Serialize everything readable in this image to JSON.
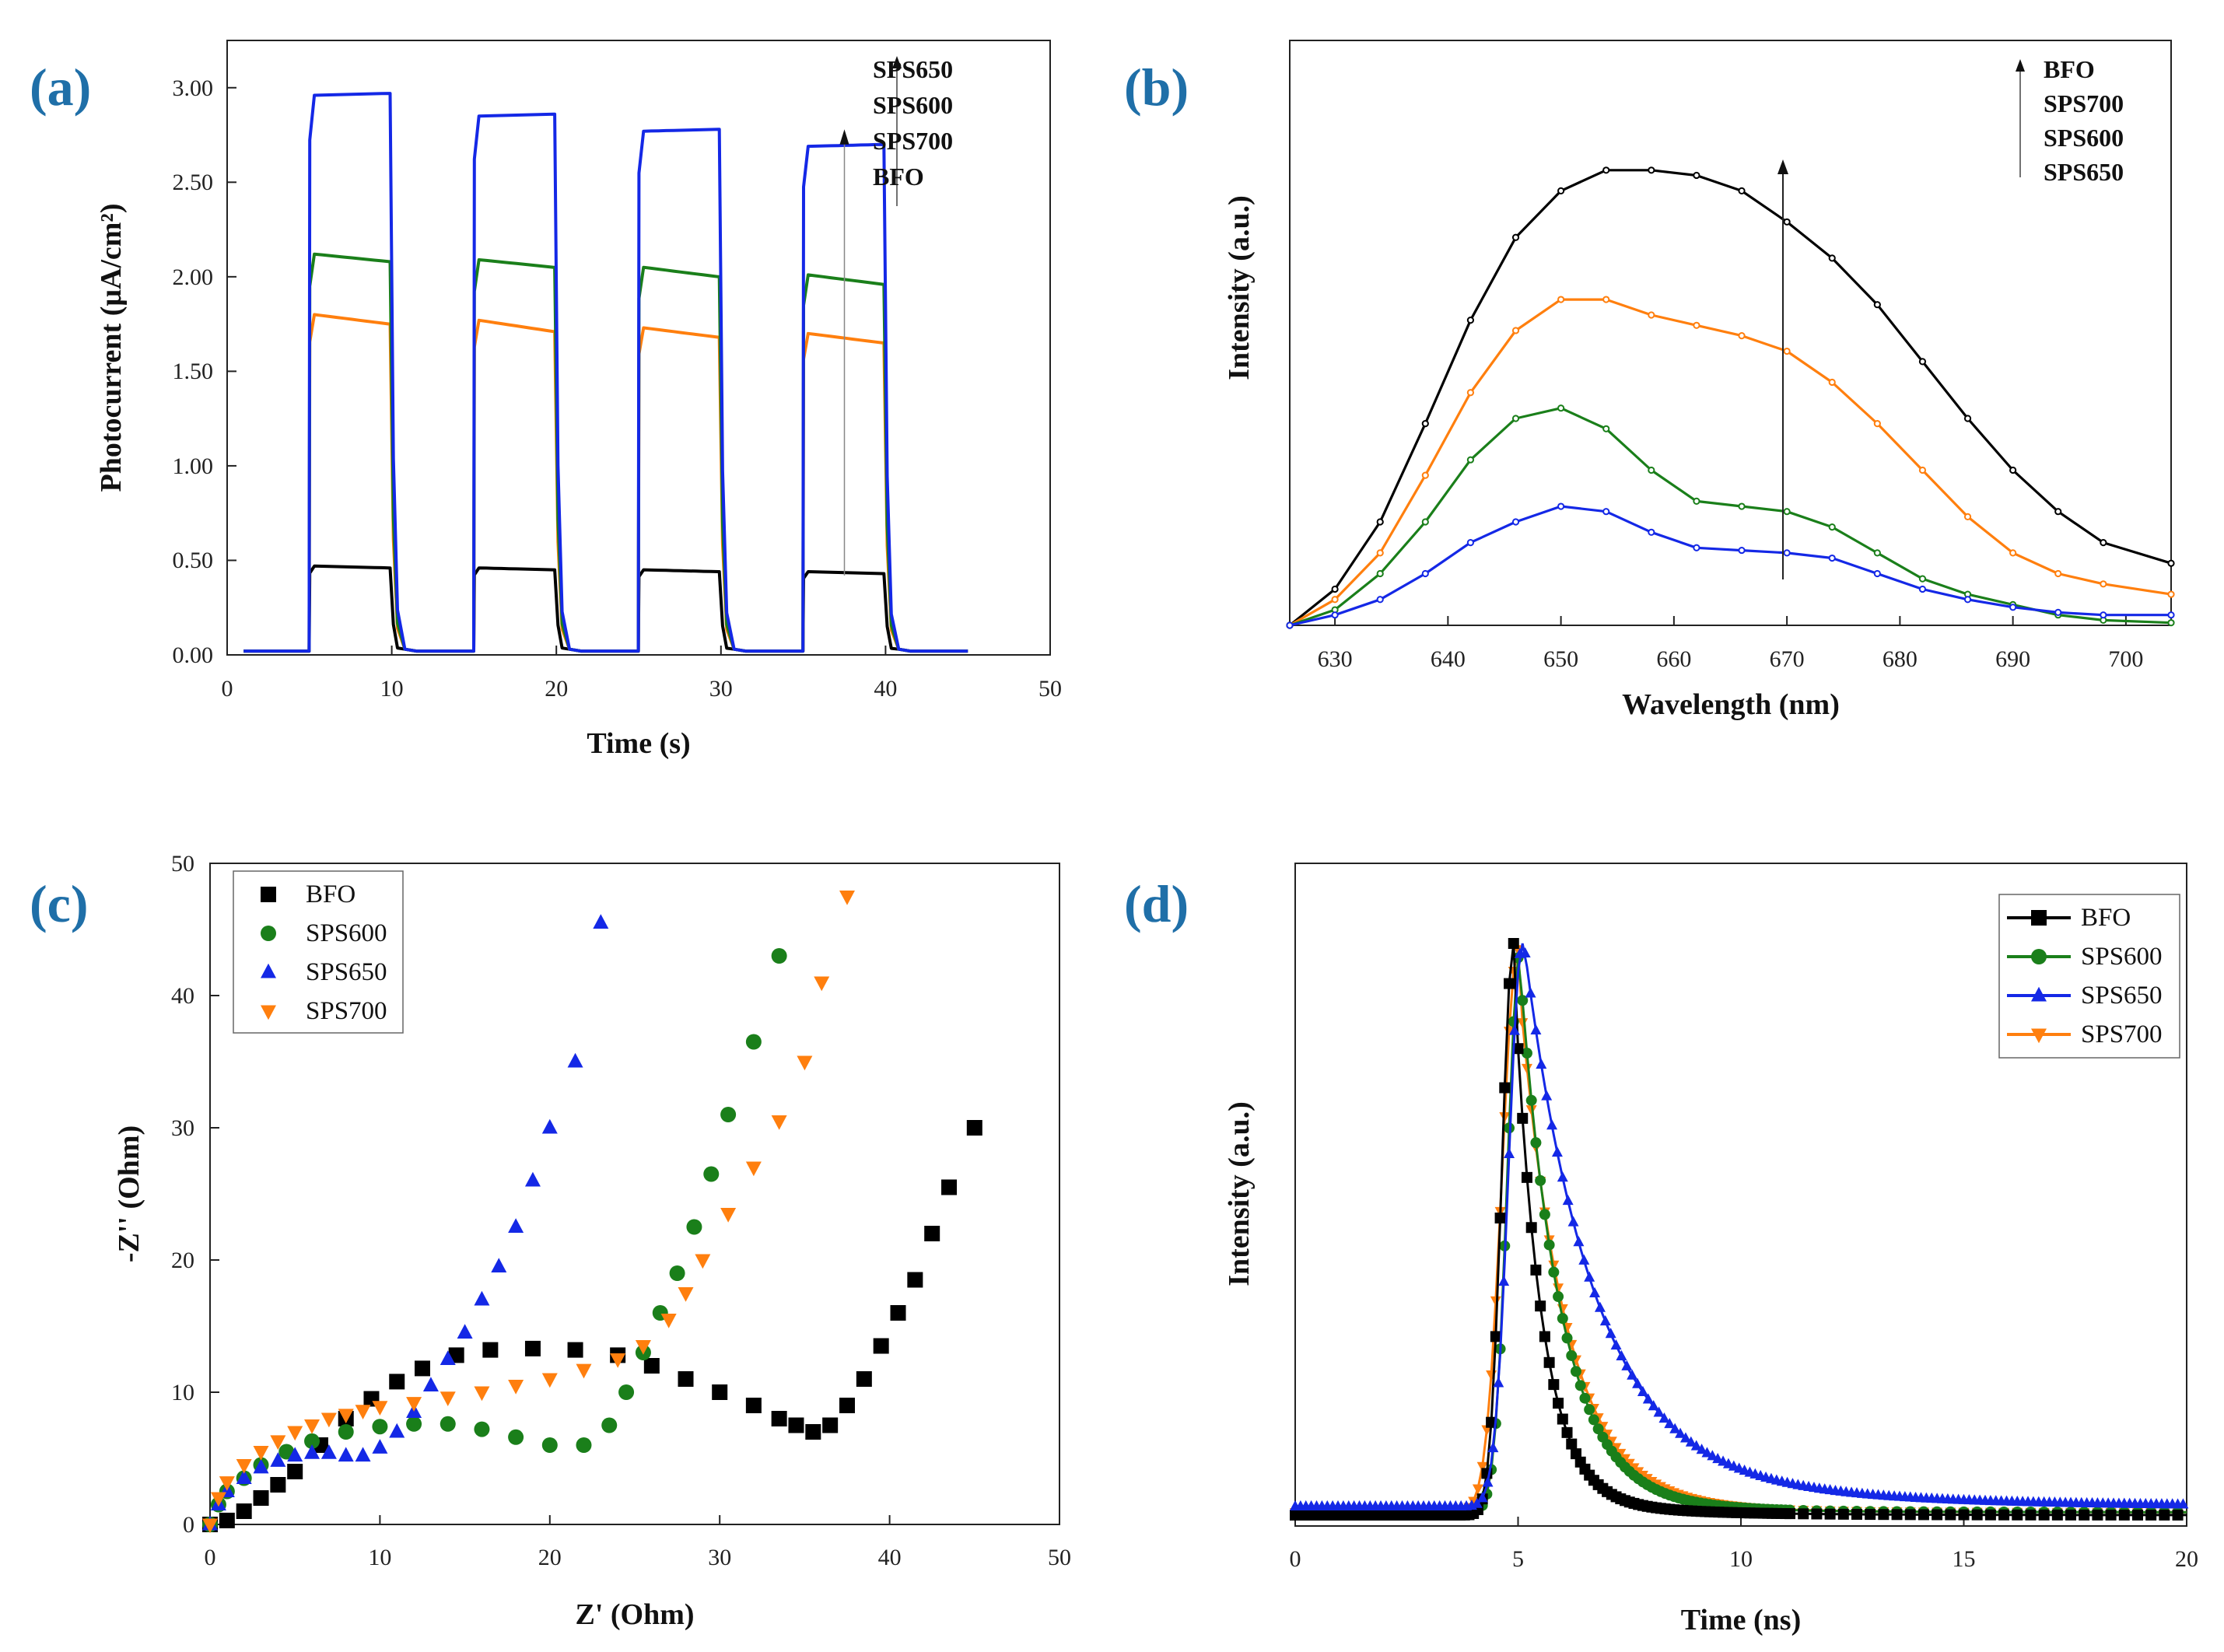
{
  "colors": {
    "label": "#1f6fa8",
    "BFO": "#000000",
    "SPS600": "#1a7f1a",
    "SPS650": "#1428e6",
    "SPS700": "#ff7f0e",
    "axis": "#222222"
  },
  "chart_data": [
    {
      "panel": "(a)",
      "type": "line",
      "xlabel": "Time (s)",
      "ylabel": "Photocurrent (μA/cm²)",
      "xlim": [
        0,
        50
      ],
      "ylim": [
        0,
        3.25
      ],
      "xticks": [
        "0",
        "10",
        "20",
        "30",
        "40",
        "50"
      ],
      "yticks": [
        "0.00",
        "0.50",
        "1.00",
        "1.50",
        "2.00",
        "2.50",
        "3.00"
      ],
      "light_on_intervals": [
        [
          5,
          10
        ],
        [
          15,
          20
        ],
        [
          25,
          30
        ],
        [
          35,
          40
        ]
      ],
      "series": [
        {
          "name": "BFO",
          "on_start": [
            0.47,
            0.46,
            0.45,
            0.44
          ],
          "on_end": [
            0.46,
            0.45,
            0.44,
            0.43
          ],
          "off": 0.02
        },
        {
          "name": "SPS700",
          "on_start": [
            1.8,
            1.77,
            1.73,
            1.7
          ],
          "on_end": [
            1.75,
            1.71,
            1.68,
            1.65
          ],
          "off": 0.02
        },
        {
          "name": "SPS600",
          "on_start": [
            2.12,
            2.09,
            2.05,
            2.01
          ],
          "on_end": [
            2.08,
            2.05,
            2.0,
            1.96
          ],
          "off": 0.02
        },
        {
          "name": "SPS650",
          "on_start": [
            2.96,
            2.85,
            2.77,
            2.69
          ],
          "on_end": [
            2.97,
            2.86,
            2.78,
            2.7
          ],
          "off": 0.02
        }
      ],
      "legend": [
        "SPS650",
        "SPS600",
        "SPS700",
        "BFO"
      ]
    },
    {
      "panel": "(b)",
      "type": "line",
      "xlabel": "Wavelength (nm)",
      "ylabel": "Intensity (a.u.)",
      "xlim": [
        626,
        704
      ],
      "ylim": [
        0,
        1.0
      ],
      "xticks": [
        "630",
        "640",
        "650",
        "660",
        "670",
        "680",
        "690",
        "700"
      ],
      "x": [
        626,
        630,
        634,
        638,
        642,
        646,
        650,
        654,
        658,
        662,
        666,
        670,
        674,
        678,
        682,
        686,
        690,
        694,
        698,
        704
      ],
      "series": [
        {
          "name": "BFO",
          "values": [
            0.0,
            0.07,
            0.2,
            0.39,
            0.59,
            0.75,
            0.84,
            0.88,
            0.88,
            0.87,
            0.84,
            0.78,
            0.71,
            0.62,
            0.51,
            0.4,
            0.3,
            0.22,
            0.16,
            0.12
          ]
        },
        {
          "name": "SPS700",
          "values": [
            0.0,
            0.05,
            0.14,
            0.29,
            0.45,
            0.57,
            0.63,
            0.63,
            0.6,
            0.58,
            0.56,
            0.53,
            0.47,
            0.39,
            0.3,
            0.21,
            0.14,
            0.1,
            0.08,
            0.06
          ]
        },
        {
          "name": "SPS600",
          "values": [
            0.0,
            0.03,
            0.1,
            0.2,
            0.32,
            0.4,
            0.42,
            0.38,
            0.3,
            0.24,
            0.23,
            0.22,
            0.19,
            0.14,
            0.09,
            0.06,
            0.04,
            0.02,
            0.01,
            0.005
          ]
        },
        {
          "name": "SPS650",
          "values": [
            0.0,
            0.02,
            0.05,
            0.1,
            0.16,
            0.2,
            0.23,
            0.22,
            0.18,
            0.15,
            0.145,
            0.14,
            0.13,
            0.1,
            0.07,
            0.05,
            0.035,
            0.025,
            0.02,
            0.02
          ]
        }
      ],
      "legend": [
        "BFO",
        "SPS700",
        "SPS600",
        "SPS650"
      ]
    },
    {
      "panel": "(c)",
      "type": "scatter",
      "xlabel": "Z' (Ohm)",
      "ylabel": "-Z'' (Ohm)",
      "xlim": [
        0,
        50
      ],
      "ylim": [
        0,
        50
      ],
      "xticks": [
        "0",
        "10",
        "20",
        "30",
        "40",
        "50"
      ],
      "yticks": [
        "0",
        "10",
        "20",
        "30",
        "40",
        "50"
      ],
      "series": [
        {
          "name": "BFO",
          "marker": "square",
          "x": [
            0,
            1,
            2,
            3,
            4,
            5,
            6.5,
            8,
            9.5,
            11,
            12.5,
            14.5,
            16.5,
            19,
            21.5,
            24,
            26,
            28,
            30,
            32,
            33.5,
            34.5,
            35.5,
            36.5,
            37.5,
            38.5,
            39.5,
            40.5,
            41.5,
            42.5,
            43.5,
            45
          ],
          "y": [
            0,
            0.3,
            1,
            2,
            3,
            4,
            6,
            8,
            9.5,
            10.8,
            11.8,
            12.8,
            13.2,
            13.3,
            13.2,
            12.8,
            12,
            11,
            10,
            9,
            8,
            7.5,
            7,
            7.5,
            9,
            11,
            13.5,
            16,
            18.5,
            22,
            25.5,
            30
          ]
        },
        {
          "name": "SPS600",
          "marker": "circle",
          "x": [
            0,
            0.5,
            1,
            2,
            3,
            4.5,
            6,
            8,
            10,
            12,
            14,
            16,
            18,
            20,
            22,
            23.5,
            24.5,
            25.5,
            26.5,
            27.5,
            28.5,
            29.5,
            30.5,
            32,
            33.5
          ],
          "y": [
            0,
            1.5,
            2.5,
            3.5,
            4.5,
            5.5,
            6.3,
            7,
            7.4,
            7.6,
            7.6,
            7.2,
            6.6,
            6,
            6,
            7.5,
            10,
            13,
            16,
            19,
            22.5,
            26.5,
            31,
            36.5,
            43
          ]
        },
        {
          "name": "SPS650",
          "marker": "triangle-up",
          "x": [
            0,
            0.5,
            1,
            2,
            3,
            4,
            5,
            6,
            7,
            8,
            9,
            10,
            11,
            12,
            13,
            14,
            15,
            16,
            17,
            18,
            19,
            20,
            21.5,
            23
          ],
          "y": [
            0,
            1.5,
            2.5,
            3.5,
            4.3,
            4.8,
            5.2,
            5.4,
            5.4,
            5.2,
            5.2,
            5.8,
            7,
            8.5,
            10.5,
            12.5,
            14.5,
            17,
            19.5,
            22.5,
            26,
            30,
            35,
            45.5
          ]
        },
        {
          "name": "SPS700",
          "marker": "triangle-down",
          "x": [
            0,
            0.5,
            1,
            2,
            3,
            4,
            5,
            6,
            7,
            8,
            9,
            10,
            12,
            14,
            16,
            18,
            20,
            22,
            24,
            25.5,
            27,
            28,
            29,
            30.5,
            32,
            33.5,
            35,
            36,
            37.5
          ],
          "y": [
            0,
            2,
            3.2,
            4.5,
            5.5,
            6.3,
            7,
            7.5,
            8,
            8.3,
            8.6,
            8.9,
            9.2,
            9.6,
            10,
            10.5,
            11,
            11.7,
            12.5,
            13.5,
            15.5,
            17.5,
            20,
            23.5,
            27,
            30.5,
            35,
            41,
            47.5
          ]
        }
      ],
      "legend": [
        "BFO",
        "SPS600",
        "SPS650",
        "SPS700"
      ]
    },
    {
      "panel": "(d)",
      "type": "line",
      "xlabel": "Time (ns)",
      "ylabel": "Intensity (a.u.)",
      "xlim": [
        0,
        20
      ],
      "ylim": [
        0,
        1.0
      ],
      "xticks": [
        "0",
        "5",
        "10",
        "15",
        "20"
      ],
      "series": [
        {
          "name": "BFO",
          "marker": "square",
          "peak_time": 4.9,
          "peak": 0.98,
          "rise": 0.55,
          "decay": 0.6,
          "baseline": 0.0
        },
        {
          "name": "SPS600",
          "marker": "circle",
          "peak_time": 5.05,
          "peak": 0.97,
          "rise": 0.6,
          "decay": 0.9,
          "baseline": 0.005
        },
        {
          "name": "SPS650",
          "marker": "triangle-up",
          "peak_time": 5.1,
          "peak": 0.98,
          "rise": 0.65,
          "decay": 1.5,
          "baseline": 0.015
        },
        {
          "name": "SPS700",
          "marker": "triangle-down",
          "peak_time": 5.0,
          "peak": 0.97,
          "rise": 0.75,
          "decay": 1.0,
          "baseline": 0.005
        }
      ],
      "legend": [
        "BFO",
        "SPS600",
        "SPS650",
        "SPS700"
      ]
    }
  ]
}
